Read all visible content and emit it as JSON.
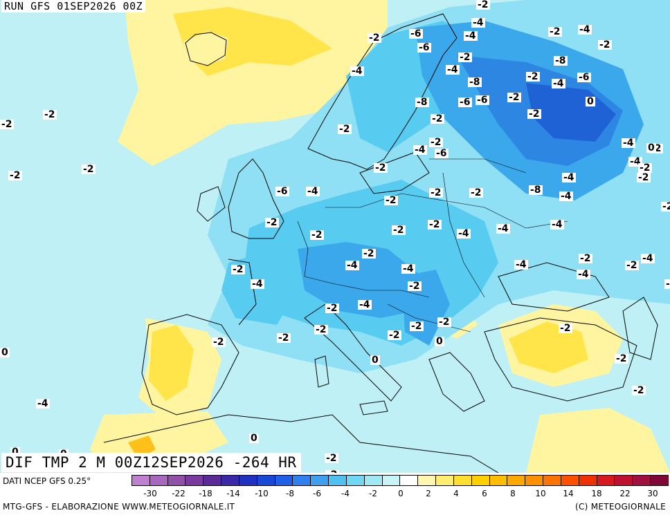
{
  "header": {
    "run_label": "RUN GFS 01SEP2026 00Z",
    "field_title": "DIF TMP 2 M 00Z12SEP2026 -264 HR"
  },
  "footer": {
    "data_source": "DATI NCEP GFS 0.25°",
    "credit_left": "MTG-GFS - ELABORAZIONE WWW.METEOGIORNALE.IT",
    "credit_right": "(C) METEOGIORNALE"
  },
  "legend": {
    "colors": [
      "#c080d0",
      "#a868c0",
      "#9050a8",
      "#7a3aa0",
      "#5a2a98",
      "#3a28a8",
      "#2030c0",
      "#1848d8",
      "#2060e8",
      "#3080f0",
      "#40a0f0",
      "#50c0f0",
      "#70d8f0",
      "#a0e8f4",
      "#c8f4f8",
      "#ffffff",
      "#fff6b0",
      "#ffee70",
      "#ffe030",
      "#ffd000",
      "#ffbe00",
      "#ffa800",
      "#ff9000",
      "#ff7400",
      "#ff5000",
      "#f03000",
      "#d81820",
      "#c01030",
      "#a01040",
      "#800838"
    ],
    "ticks": [
      "-30",
      "-22",
      "-18",
      "-14",
      "-10",
      "-8",
      "-6",
      "-4",
      "-2",
      "0",
      "2",
      "4",
      "6",
      "8",
      "10",
      "14",
      "18",
      "22",
      "30"
    ]
  },
  "map": {
    "colors": {
      "ocean": "#bff0f6",
      "light_yellow": "#fff5a0",
      "yellow": "#ffe44a",
      "orange": "#ffc01a",
      "cyan_light": "#8fe0f4",
      "cyan": "#58ccf0",
      "blue_light": "#3ca8ec",
      "blue": "#2c86e2",
      "blue_dark": "#1e62d6"
    },
    "contour_labels": [
      "-2",
      "-4",
      "-2",
      "-6",
      "-4",
      "-2",
      "-4",
      "-2",
      "-6",
      "-2",
      "-4",
      "-8",
      "-4",
      "-8",
      "-2",
      "-4",
      "-6",
      "-6",
      "-8",
      "-6",
      "-2",
      "0",
      "-2",
      "-2",
      "-2",
      "-2",
      "-2",
      "-4",
      "-2",
      "-2",
      "-4",
      "-6",
      "-4",
      "-2",
      "-2",
      "-2",
      "-2",
      "-2",
      "-4",
      "-8",
      "-6",
      "-4",
      "-2",
      "-2",
      "-4",
      "-2",
      "-2",
      "-2",
      "-2",
      "-4",
      "-4",
      "-2",
      "-4",
      "-2",
      "-2",
      "-2",
      "-4",
      "-4",
      "-2",
      "-4",
      "-4",
      "-2",
      "-4",
      "-4",
      "-2",
      "-2",
      "-2",
      "-2",
      "-4",
      "-2",
      "-2",
      "-2",
      "-2",
      "-2",
      "0",
      "0",
      "-2",
      "-2",
      "-4",
      "0",
      "0",
      "0",
      "0",
      "-2",
      "-2",
      "0",
      "-2",
      "-2",
      "-2"
    ]
  }
}
